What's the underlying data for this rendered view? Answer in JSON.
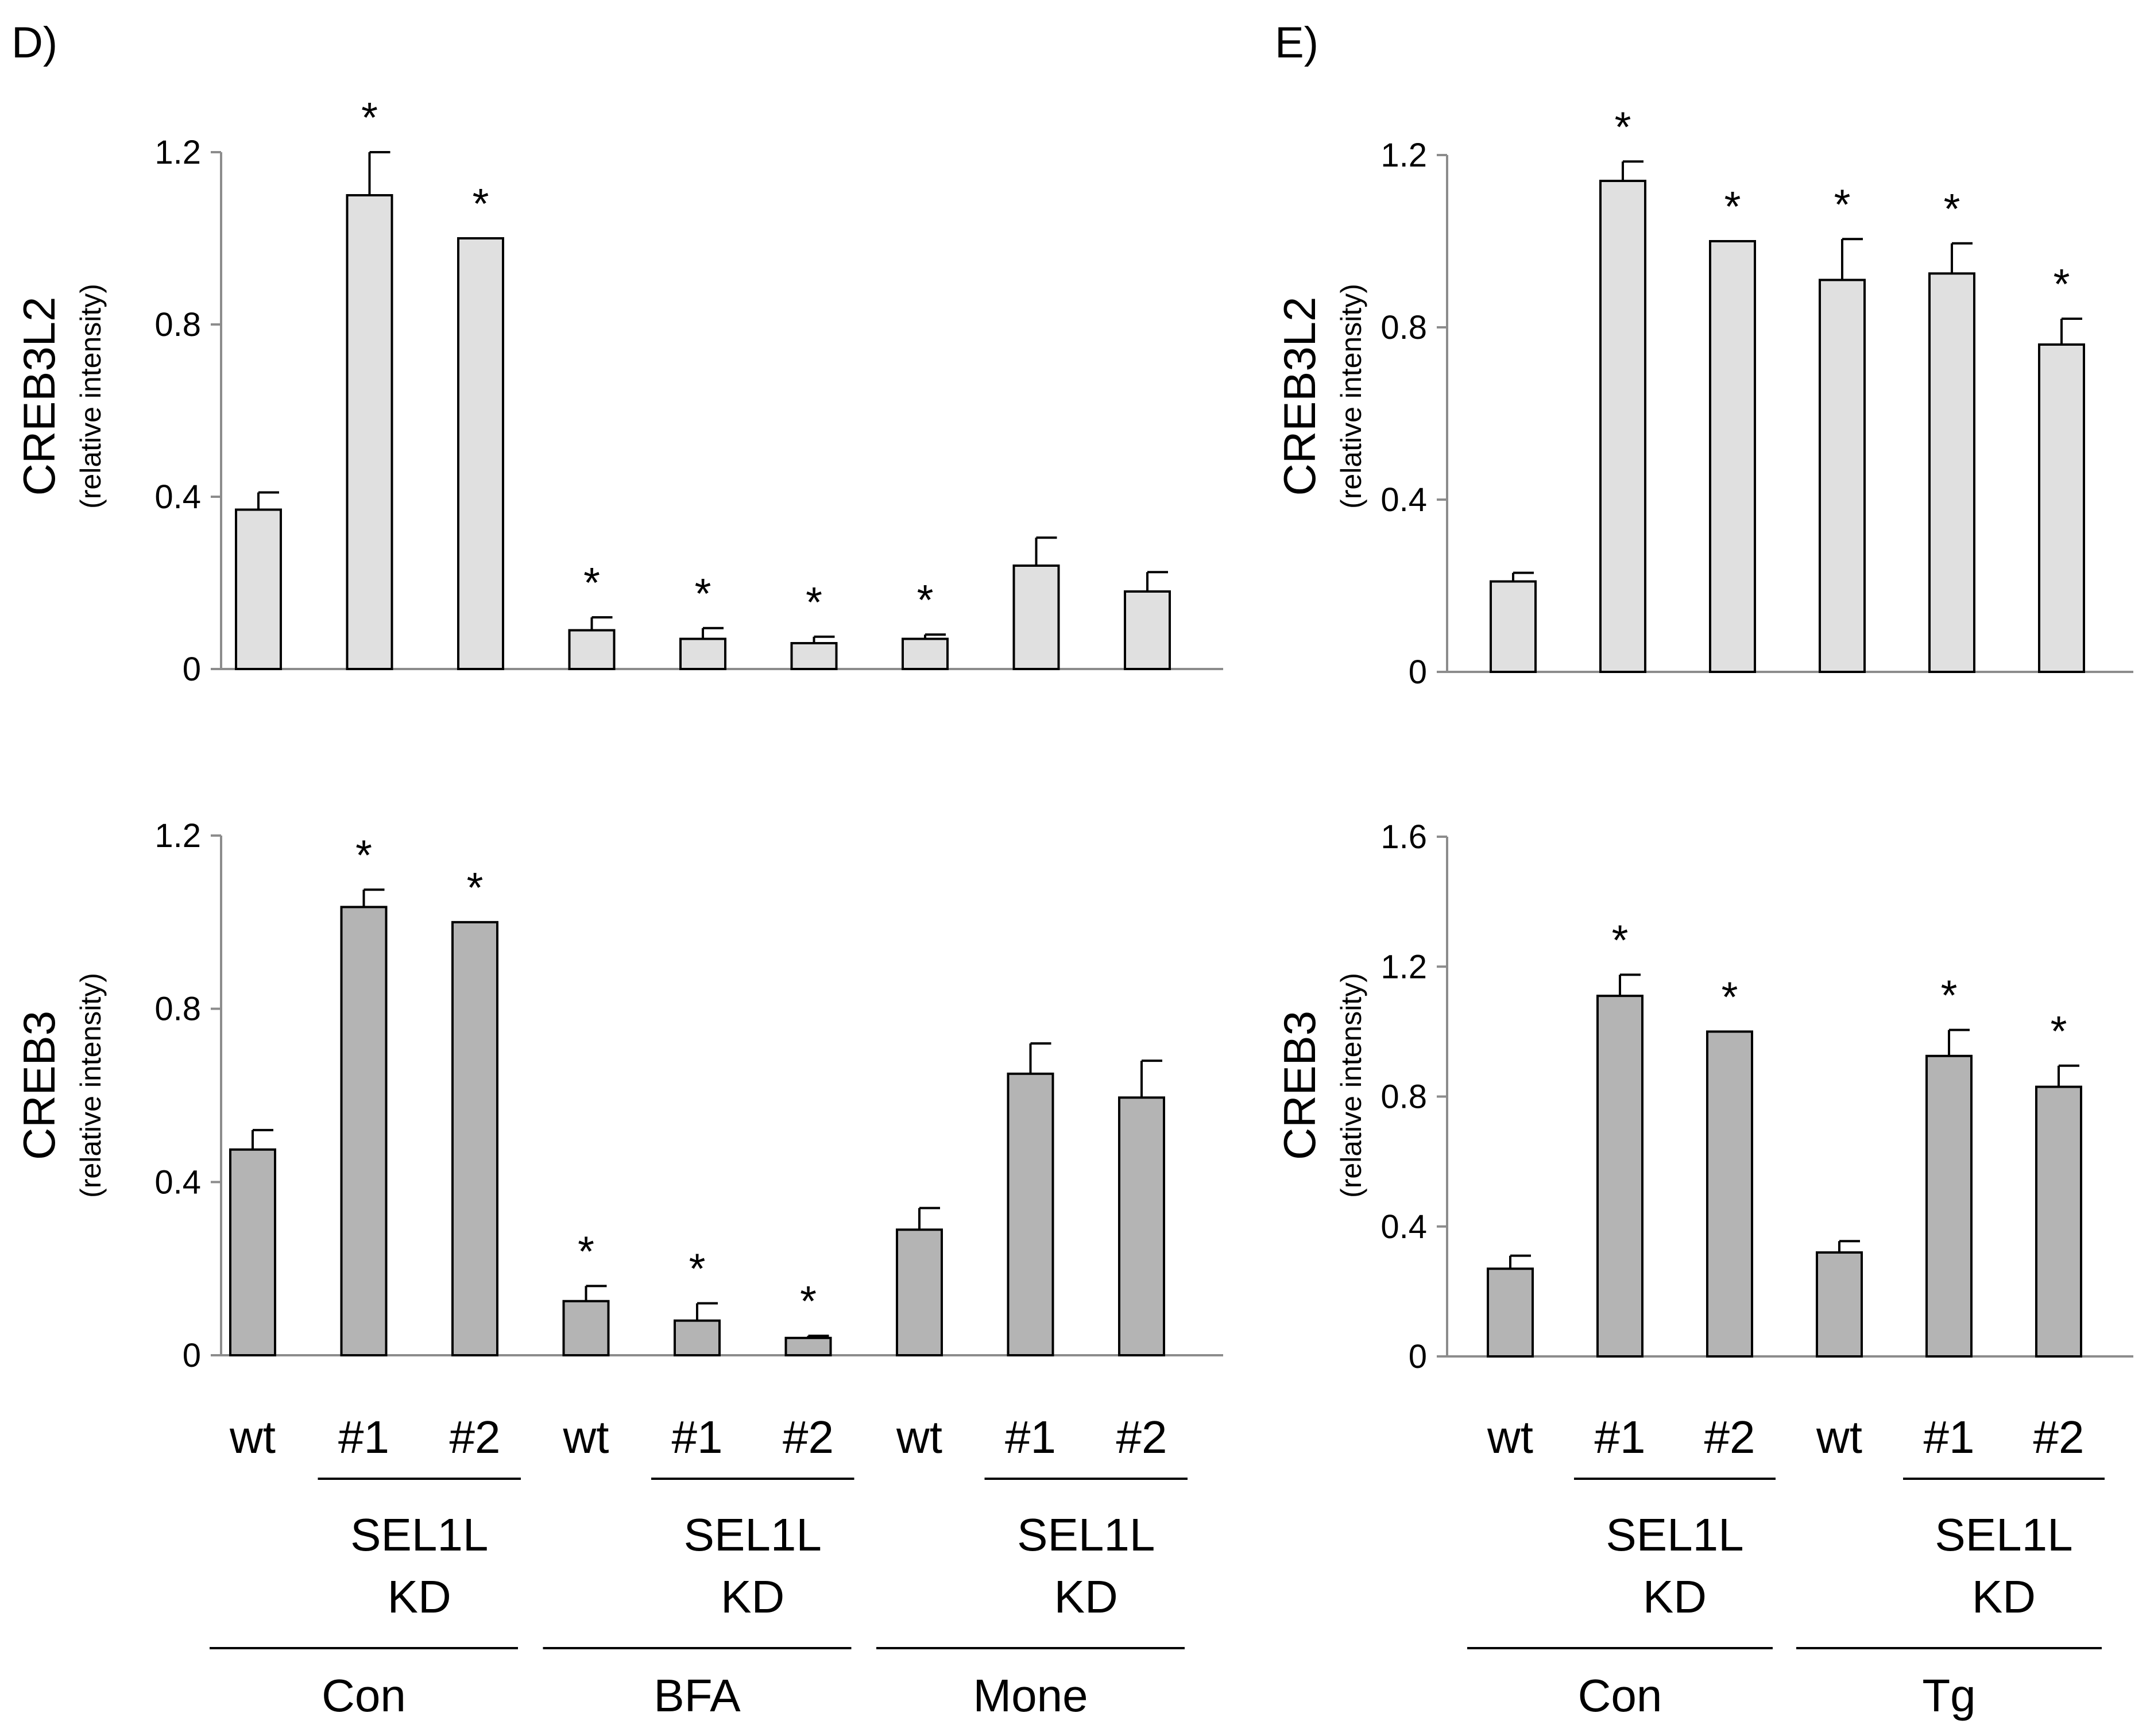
{
  "figure": {
    "panels": [
      {
        "label": "D)"
      },
      {
        "label": "E)"
      }
    ],
    "group_labels": {
      "sample": [
        "wt",
        "#1",
        "#2"
      ],
      "kd_line1": "SEL1L",
      "kd_line2": "KD"
    }
  },
  "colors": {
    "creb3l2_bar": "#e0e0e0",
    "creb3_bar": "#b4b4b4",
    "axis": "#8c8c8c",
    "ink": "#000000"
  },
  "chart_data": [
    {
      "id": "D-CREB3L2",
      "panel": "D)",
      "type": "bar",
      "ylabel": "CREB3L2",
      "ylabel_sub": "(relative intensity)",
      "ylim": [
        0,
        1.2
      ],
      "yticks": [
        0,
        0.4,
        0.8,
        1.2
      ],
      "ytick_labels": [
        "0",
        "0.4",
        "0.8",
        "1.2"
      ],
      "categories": [
        "wt",
        "#1",
        "#2",
        "wt",
        "#1",
        "#2",
        "wt",
        "#1",
        "#2"
      ],
      "values": [
        0.37,
        1.1,
        1.0,
        0.09,
        0.07,
        0.06,
        0.07,
        0.24,
        0.18
      ],
      "errors": [
        0.04,
        0.1,
        0.0,
        0.03,
        0.025,
        0.015,
        0.01,
        0.065,
        0.045
      ],
      "significance": [
        "",
        "*",
        "*",
        "*",
        "*",
        "*",
        "*",
        "",
        ""
      ],
      "treatments": [
        "Con",
        "BFA",
        "Mone"
      ]
    },
    {
      "id": "D-CREB3",
      "panel": "D)",
      "type": "bar",
      "ylabel": "CREB3",
      "ylabel_sub": "(relative intensity)",
      "ylim": [
        0,
        1.2
      ],
      "yticks": [
        0,
        0.4,
        0.8,
        1.2
      ],
      "ytick_labels": [
        "0",
        "0.4",
        "0.8",
        "1.2"
      ],
      "categories": [
        "wt",
        "#1",
        "#2",
        "wt",
        "#1",
        "#2",
        "wt",
        "#1",
        "#2"
      ],
      "values": [
        0.475,
        1.035,
        1.0,
        0.125,
        0.08,
        0.04,
        0.29,
        0.65,
        0.595
      ],
      "errors": [
        0.045,
        0.04,
        0.0,
        0.035,
        0.04,
        0.005,
        0.05,
        0.07,
        0.085
      ],
      "significance": [
        "",
        "*",
        "*",
        "*",
        "*",
        "*",
        "",
        "",
        ""
      ],
      "treatments": [
        "Con",
        "BFA",
        "Mone"
      ]
    },
    {
      "id": "E-CREB3L2",
      "panel": "E)",
      "type": "bar",
      "ylabel": "CREB3L2",
      "ylabel_sub": "(relative intensity)",
      "ylim": [
        0,
        1.2
      ],
      "yticks": [
        0,
        0.4,
        0.8,
        1.2
      ],
      "ytick_labels": [
        "0",
        "0.4",
        "0.8",
        "1.2"
      ],
      "categories": [
        "wt",
        "#1",
        "#2",
        "wt",
        "#1",
        "#2"
      ],
      "values": [
        0.21,
        1.14,
        1.0,
        0.91,
        0.925,
        0.76
      ],
      "errors": [
        0.02,
        0.045,
        0.0,
        0.095,
        0.07,
        0.06
      ],
      "significance": [
        "",
        "*",
        "*",
        "*",
        "*",
        "*"
      ],
      "treatments": [
        "Con",
        "Tg"
      ]
    },
    {
      "id": "E-CREB3",
      "panel": "E)",
      "type": "bar",
      "ylabel": "CREB3",
      "ylabel_sub": "(relative intensity)",
      "ylim": [
        0,
        1.6
      ],
      "yticks": [
        0,
        0.4,
        0.8,
        1.2,
        1.6
      ],
      "ytick_labels": [
        "0",
        "0.4",
        "0.8",
        "1.2",
        "1.6"
      ],
      "categories": [
        "wt",
        "#1",
        "#2",
        "wt",
        "#1",
        "#2"
      ],
      "values": [
        0.27,
        1.11,
        1.0,
        0.32,
        0.925,
        0.83
      ],
      "errors": [
        0.04,
        0.065,
        0.0,
        0.035,
        0.08,
        0.065
      ],
      "significance": [
        "",
        "*",
        "*",
        "",
        "*",
        "*"
      ],
      "treatments": [
        "Con",
        "Tg"
      ]
    }
  ]
}
